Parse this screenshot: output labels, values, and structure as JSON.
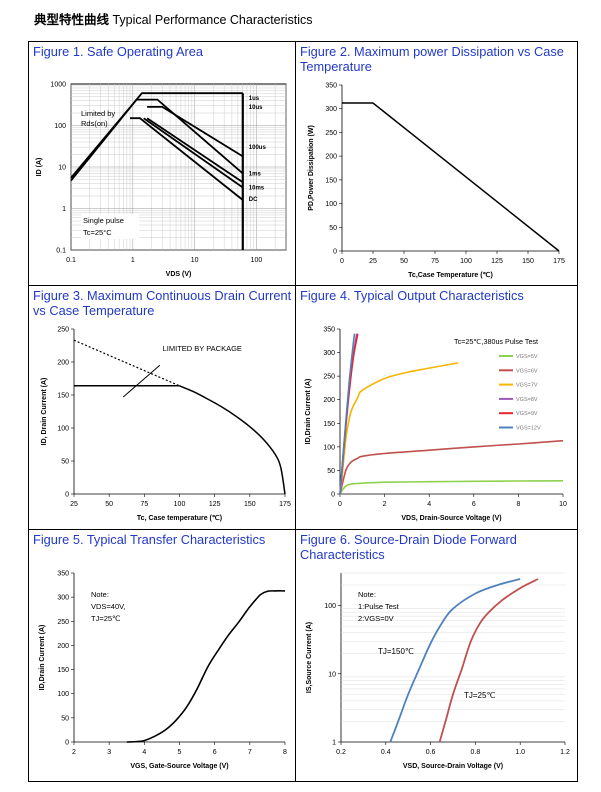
{
  "header": {
    "cn": "典型特性曲线",
    "en": " Typical Performance Characteristics"
  },
  "colors": {
    "caption": "#2239c8",
    "vgs5": "#8fd14f",
    "vgs6": "#c0504d",
    "vgs7": "#f7b500",
    "vgs8": "#9b59b6",
    "vgs9": "#e8262f",
    "vgs12": "#4f81bd",
    "tj150": "#4f81bd",
    "tj25": "#c0504d"
  },
  "figures": [
    {
      "caption": "Figure 1. Safe Operating Area"
    },
    {
      "caption": "Figure 2. Maximum power Dissipation vs Case Temperature"
    },
    {
      "caption": "Figure 3. Maximum Continuous Drain Current vs Case Temperature"
    },
    {
      "caption": "Figure 4. Typical Output Characteristics"
    },
    {
      "caption": "Figure 5. Typical Transfer Characteristics"
    },
    {
      "caption": "Figure 6. Source-Drain Diode Forward Characteristics"
    }
  ],
  "chart_data": [
    {
      "type": "line",
      "title": "Figure 1. Safe Operating Area",
      "xlabel": "VDS (V)",
      "ylabel": "ID (A)",
      "xscale": "log",
      "yscale": "log",
      "xlim": [
        0.1,
        300
      ],
      "ylim": [
        0.1,
        1000
      ],
      "xticks": [
        "0.1",
        "1",
        "10",
        "100"
      ],
      "yticks": [
        "0.1",
        "1",
        "10",
        "100",
        "1000"
      ],
      "annotations": [
        "Limited by Rds(on)",
        "Single pulse",
        "Tc=25°C"
      ],
      "series": [
        {
          "name": "1us",
          "x": [
            0.1,
            1.4,
            60
          ],
          "y": [
            5.5,
            600,
            600
          ]
        },
        {
          "name": "10us",
          "x": [
            0.1,
            1.15,
            2.5,
            60
          ],
          "y": [
            4.7,
            420,
            420,
            7
          ]
        },
        {
          "name": "100us",
          "x": [
            1.7,
            3.0,
            60
          ],
          "y": [
            280,
            280,
            18
          ]
        },
        {
          "name": "1ms",
          "x": [
            1.7,
            60
          ],
          "y": [
            150,
            4.3
          ]
        },
        {
          "name": "10ms",
          "x": [
            1.5,
            60
          ],
          "y": [
            150,
            3.2
          ]
        },
        {
          "name": "DC",
          "x": [
            0.9,
            1.3,
            60
          ],
          "y": [
            150,
            150,
            1.6
          ]
        }
      ],
      "dashed_limit": {
        "x": [
          60,
          60
        ],
        "y": [
          0.1,
          600
        ]
      }
    },
    {
      "type": "line",
      "title": "Figure 2. Maximum power Dissipation vs Case Temperature",
      "xlabel": "Tc,Case Temperature (℃)",
      "ylabel": "PD,Power Dissipation (W)",
      "xlim": [
        0,
        175
      ],
      "ylim": [
        0,
        350
      ],
      "xticks": [
        0,
        25,
        50,
        75,
        100,
        125,
        150,
        175
      ],
      "yticks": [
        0,
        50,
        100,
        150,
        200,
        250,
        300,
        350
      ],
      "series": [
        {
          "name": "PD",
          "x": [
            0,
            25,
            175
          ],
          "y": [
            312,
            312,
            0
          ]
        }
      ]
    },
    {
      "type": "line",
      "title": "Figure 3. Maximum Continuous Drain Current vs Case Temperature",
      "xlabel": "Tc, Case temperature (℃)",
      "ylabel": "ID, Drain Current (A)",
      "xlim": [
        25,
        175
      ],
      "ylim": [
        0,
        250
      ],
      "xticks": [
        25,
        50,
        75,
        100,
        125,
        150,
        175
      ],
      "yticks": [
        0,
        50,
        100,
        150,
        200,
        250
      ],
      "annotations": [
        "LIMITED BY PACKAGE"
      ],
      "series": [
        {
          "name": "package limit",
          "x": [
            25,
            100,
            110,
            120,
            130,
            140,
            150,
            160,
            168,
            172,
            175
          ],
          "y": [
            164,
            164,
            155,
            144,
            132,
            118,
            102,
            82,
            60,
            40,
            0
          ]
        },
        {
          "name": "silicon limit",
          "x": [
            25,
            100
          ],
          "y": [
            233,
            164
          ]
        }
      ]
    },
    {
      "type": "line",
      "title": "Figure 4. Typical Output Characteristics",
      "xlabel": "VDS, Drain-Source Voltage (V)",
      "ylabel": "ID,Drain Current (A)",
      "xlim": [
        0,
        10
      ],
      "ylim": [
        0,
        350
      ],
      "xticks": [
        0,
        2,
        4,
        6,
        8,
        10
      ],
      "yticks": [
        0,
        50,
        100,
        150,
        200,
        250,
        300,
        350
      ],
      "annotations": [
        "Tc=25℃,380us Pulse Test"
      ],
      "series": [
        {
          "name": "VGS=5V",
          "x": [
            0,
            0.1,
            0.2,
            0.3,
            0.5,
            1,
            2,
            4,
            6,
            8,
            10
          ],
          "y": [
            0,
            8,
            14,
            18,
            21,
            23,
            25,
            26,
            27,
            27.5,
            28
          ]
        },
        {
          "name": "VGS=6V",
          "x": [
            0,
            0.1,
            0.2,
            0.3,
            0.5,
            0.8,
            1,
            2,
            4,
            6,
            8,
            10
          ],
          "y": [
            0,
            20,
            40,
            55,
            68,
            76,
            80,
            86,
            93,
            100,
            106,
            113
          ]
        },
        {
          "name": "VGS=7V",
          "x": [
            0,
            0.1,
            0.2,
            0.3,
            0.5,
            0.8,
            1,
            2,
            3,
            4,
            5.3
          ],
          "y": [
            0,
            40,
            90,
            130,
            175,
            205,
            220,
            245,
            258,
            267,
            278
          ]
        },
        {
          "name": "VGS=8V",
          "x": [
            0,
            0.1,
            0.2,
            0.4,
            0.6,
            0.75
          ],
          "y": [
            0,
            55,
            115,
            215,
            295,
            340
          ]
        },
        {
          "name": "VGS=9V",
          "x": [
            0,
            0.1,
            0.2,
            0.4,
            0.6,
            0.8
          ],
          "y": [
            0,
            55,
            112,
            210,
            290,
            340
          ]
        },
        {
          "name": "VGS=12V",
          "x": [
            0,
            0.1,
            0.2,
            0.4,
            0.55,
            0.65
          ],
          "y": [
            0,
            60,
            120,
            230,
            300,
            340
          ]
        }
      ]
    },
    {
      "type": "line",
      "title": "Figure 5. Typical Transfer Characteristics",
      "xlabel": "VGS, Gate-Source Voltage (V)",
      "ylabel": "ID,Drain Current (A)",
      "xlim": [
        2,
        8
      ],
      "ylim": [
        0,
        350
      ],
      "xticks": [
        2,
        3,
        4,
        5,
        6,
        7,
        8
      ],
      "yticks": [
        0,
        50,
        100,
        150,
        200,
        250,
        300,
        350
      ],
      "annotations": [
        "Note:",
        "VDS=40V,",
        "TJ=25℃"
      ],
      "series": [
        {
          "name": "ID",
          "x": [
            3.5,
            3.8,
            4,
            4.3,
            4.6,
            4.9,
            5.2,
            5.5,
            5.8,
            6.1,
            6.4,
            6.7,
            7,
            7.3,
            7.5,
            7.7,
            8
          ],
          "y": [
            0,
            1,
            3,
            12,
            25,
            45,
            72,
            110,
            155,
            190,
            222,
            250,
            280,
            305,
            312,
            313,
            313
          ]
        }
      ]
    },
    {
      "type": "line",
      "title": "Figure 6. Source-Drain Diode Forward Characteristics",
      "xlabel": "VSD, Source-Drain Voltage (V)",
      "ylabel": "IS,Source Current (A)",
      "yscale": "log",
      "xlim": [
        0.2,
        1.2
      ],
      "ylim": [
        1,
        300
      ],
      "xticks": [
        "0.2",
        "0.4",
        "0.6",
        "0.8",
        "1.0",
        "1.2"
      ],
      "yticks": [
        "1",
        "10",
        "100"
      ],
      "annotations": [
        "Note:",
        "1:Pulse Test",
        "2:VGS=0V"
      ],
      "series": [
        {
          "name": "TJ=150℃",
          "x": [
            0.42,
            0.46,
            0.5,
            0.55,
            0.6,
            0.65,
            0.7,
            0.8,
            0.9,
            1.0
          ],
          "y": [
            1,
            2.2,
            5,
            12,
            28,
            55,
            90,
            150,
            200,
            245
          ]
        },
        {
          "name": "TJ=25℃",
          "x": [
            0.64,
            0.67,
            0.7,
            0.74,
            0.78,
            0.82,
            0.86,
            0.92,
            1.0,
            1.08
          ],
          "y": [
            1,
            2.2,
            5,
            12,
            30,
            55,
            80,
            120,
            180,
            245
          ]
        }
      ]
    }
  ]
}
